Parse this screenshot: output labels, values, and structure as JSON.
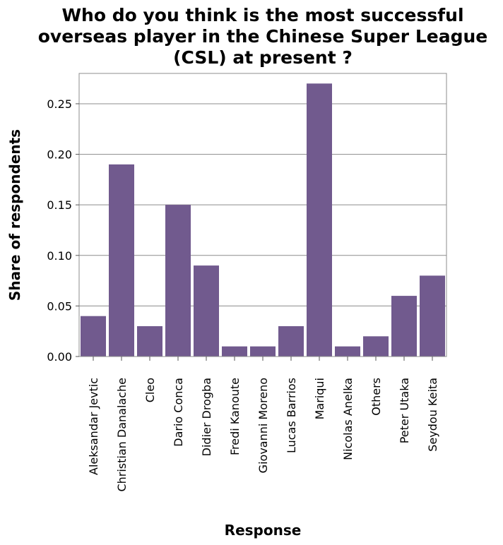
{
  "chart_data": {
    "type": "bar",
    "title": [
      "Who do you think is the most successful",
      "overseas player in the Chinese Super League",
      "(CSL) at present ?"
    ],
    "xlabel": "Response",
    "ylabel": "Share of respondents",
    "categories": [
      "Aleksandar Jevtic",
      "Christian Danalache",
      "Cleo",
      "Dario Conca",
      "Didier Drogba",
      "Fredi Kanoute",
      "Giovanni Moreno",
      "Lucas Barrios",
      "Mariqui",
      "Nicolas Anelka",
      "Others",
      "Peter Utaka",
      "Seydou Keita"
    ],
    "values": [
      0.04,
      0.19,
      0.03,
      0.15,
      0.09,
      0.01,
      0.01,
      0.03,
      0.27,
      0.01,
      0.02,
      0.06,
      0.08
    ],
    "yticks": [
      "0.00",
      "0.05",
      "0.10",
      "0.15",
      "0.20",
      "0.25"
    ],
    "ylim": [
      0,
      0.28
    ],
    "grid": true,
    "bar_color": "#715a8e"
  }
}
